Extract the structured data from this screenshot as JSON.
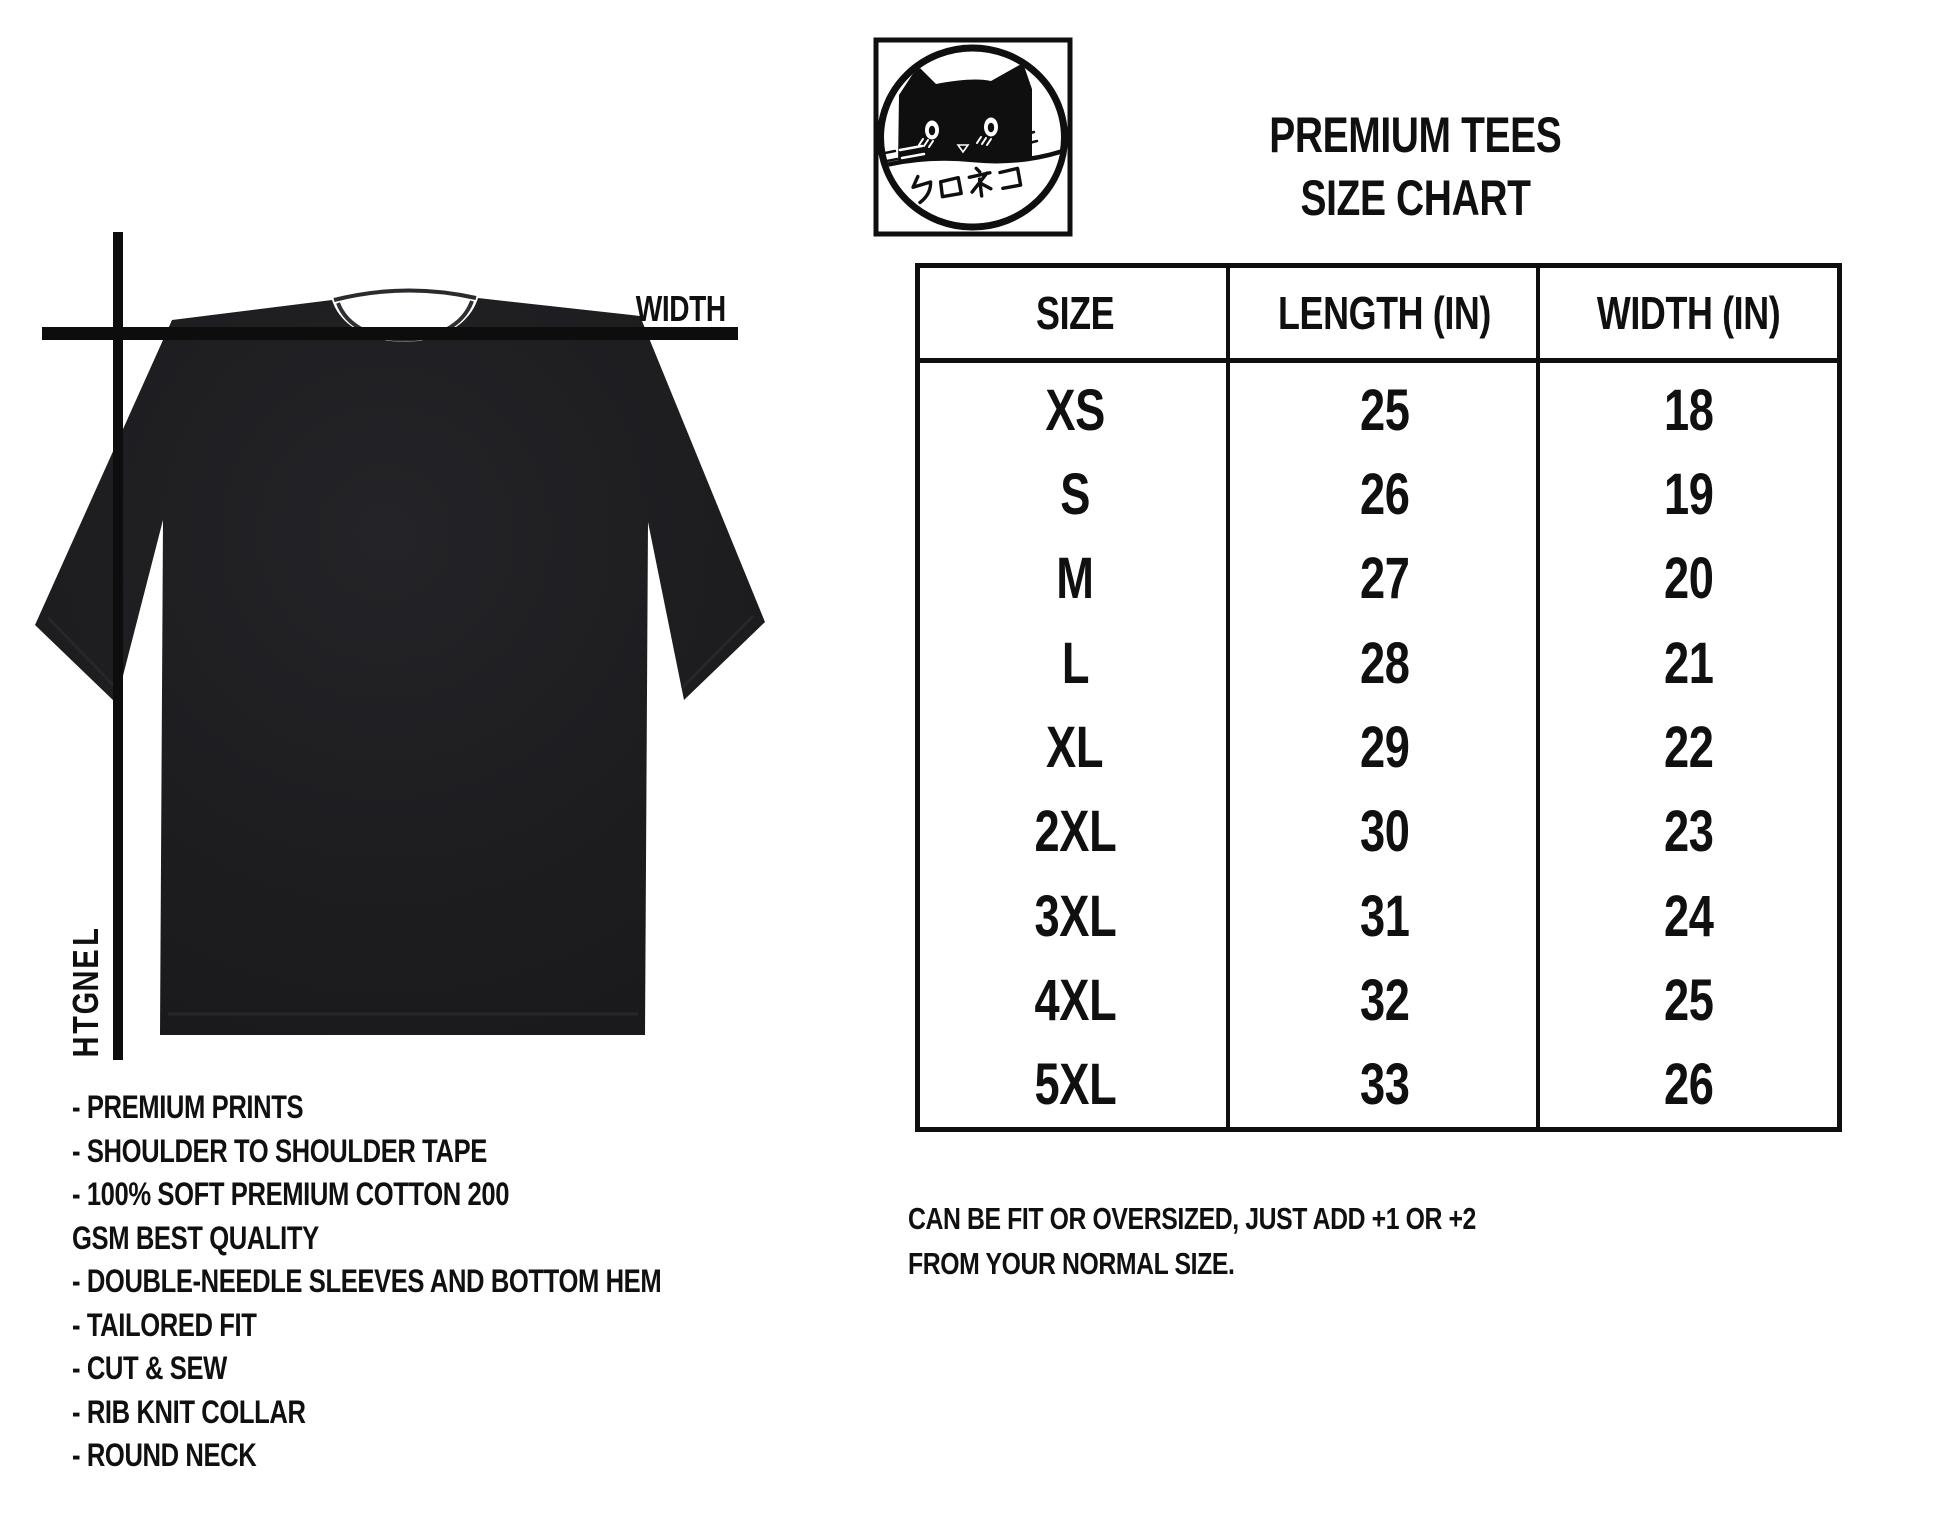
{
  "colors": {
    "ink": "#0f0f0f",
    "shirt_dark": "#1a1a1c",
    "shirt_light": "#252528",
    "background": "#ffffff"
  },
  "logo": {
    "name": "kuroneko-cat-stamp",
    "text_jp": "クロネコ"
  },
  "header": {
    "title_line1": "PREMIUM TEES",
    "title_line2": "SIZE CHART"
  },
  "diagram": {
    "width_label": "WIDTH",
    "length_label": "LENGTH"
  },
  "size_table": {
    "columns": [
      "SIZE",
      "LENGTH (IN)",
      "WIDTH (IN)"
    ],
    "rows": [
      [
        "XS",
        "25",
        "18"
      ],
      [
        "S",
        "26",
        "19"
      ],
      [
        "M",
        "27",
        "20"
      ],
      [
        "L",
        "28",
        "21"
      ],
      [
        "XL",
        "29",
        "22"
      ],
      [
        "2XL",
        "30",
        "23"
      ],
      [
        "3XL",
        "31",
        "24"
      ],
      [
        "4XL",
        "32",
        "25"
      ],
      [
        "5XL",
        "33",
        "26"
      ]
    ]
  },
  "features": {
    "lines": [
      "- PREMIUM PRINTS",
      "- SHOULDER TO SHOULDER TAPE",
      "- 100% SOFT PREMIUM COTTON 200",
      "GSM BEST QUALITY",
      "- DOUBLE-NEEDLE SLEEVES AND BOTTOM HEM",
      "- TAILORED FIT",
      "- CUT & SEW",
      "- RIB KNIT COLLAR",
      "- ROUND NECK"
    ]
  },
  "note": {
    "lines": [
      "CAN BE FIT OR OVERSIZED, JUST ADD +1 OR +2",
      "FROM YOUR NORMAL SIZE."
    ]
  },
  "chart_data": {
    "type": "table",
    "title": "PREMIUM TEES SIZE CHART",
    "columns": [
      "SIZE",
      "LENGTH (IN)",
      "WIDTH (IN)"
    ],
    "rows": [
      [
        "XS",
        25,
        18
      ],
      [
        "S",
        26,
        19
      ],
      [
        "M",
        27,
        20
      ],
      [
        "L",
        28,
        21
      ],
      [
        "XL",
        29,
        22
      ],
      [
        "2XL",
        30,
        23
      ],
      [
        "3XL",
        31,
        24
      ],
      [
        "4XL",
        32,
        25
      ],
      [
        "5XL",
        33,
        26
      ]
    ]
  }
}
